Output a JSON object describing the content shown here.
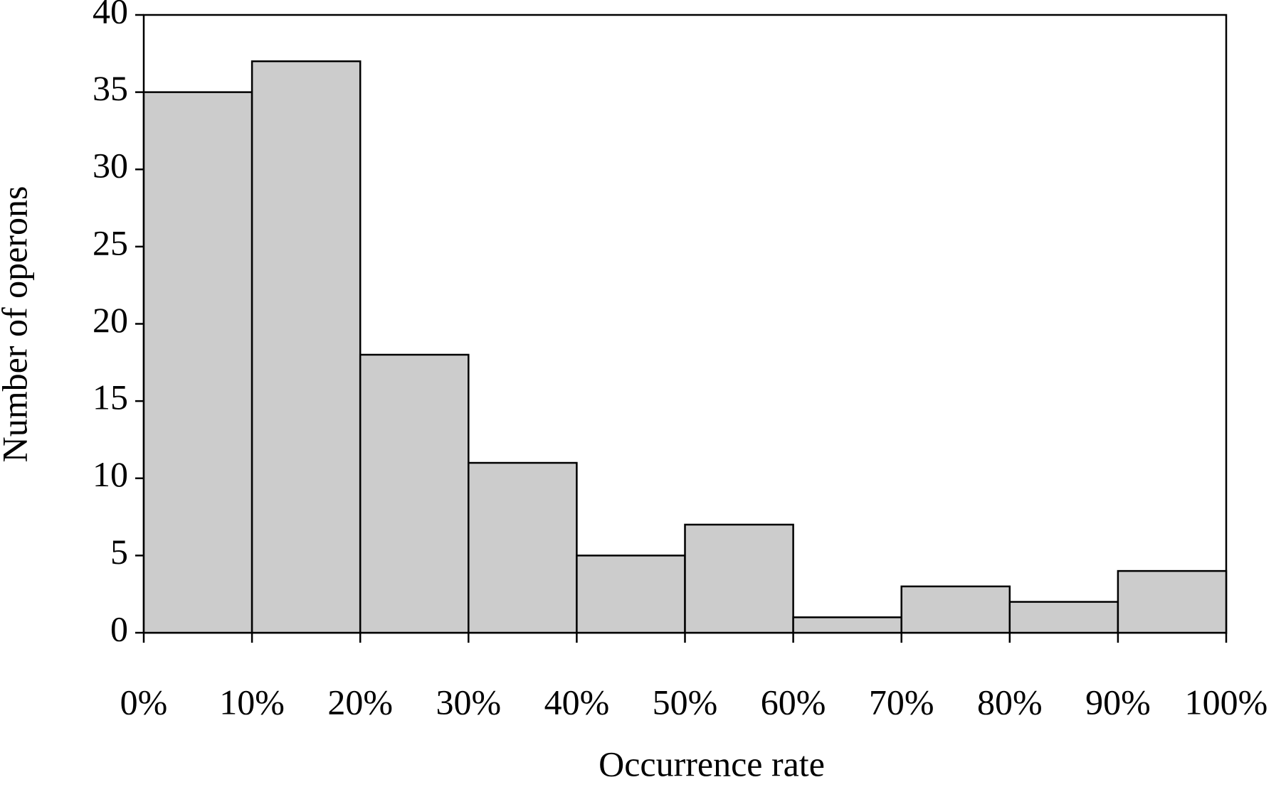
{
  "chart_data": {
    "type": "histogram",
    "xlabel": "Occurrence rate",
    "ylabel": "Number of operons",
    "bins": [
      0,
      10,
      20,
      30,
      40,
      50,
      60,
      70,
      80,
      90,
      100
    ],
    "counts": [
      35,
      37,
      18,
      11,
      5,
      7,
      1,
      3,
      2,
      4
    ],
    "color": "#cccccc",
    "xlim": [
      0,
      100
    ],
    "xticks": [
      {
        "value": 0,
        "label": "0%"
      },
      {
        "value": 10,
        "label": "10%"
      },
      {
        "value": 20,
        "label": "20%"
      },
      {
        "value": 30,
        "label": "30%"
      },
      {
        "value": 40,
        "label": "40%"
      },
      {
        "value": 50,
        "label": "50%"
      },
      {
        "value": 60,
        "label": "60%"
      },
      {
        "value": 70,
        "label": "70%"
      },
      {
        "value": 80,
        "label": "80%"
      },
      {
        "value": 90,
        "label": "90%"
      },
      {
        "value": 100,
        "label": "100%"
      }
    ],
    "ylim": [
      0,
      40
    ],
    "yticks": [
      0,
      5,
      10,
      15,
      20,
      25,
      30,
      35,
      40
    ],
    "grid": false
  }
}
